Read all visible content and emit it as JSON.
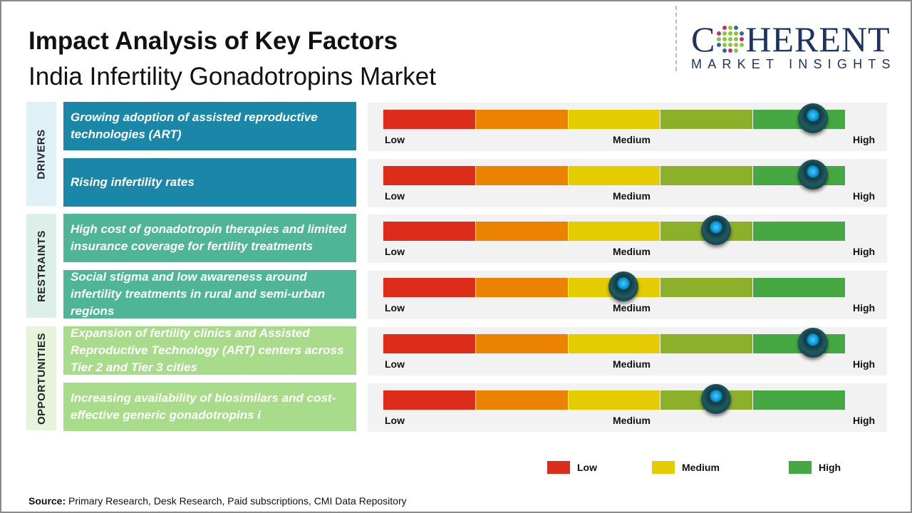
{
  "title": "Impact Analysis of Key Factors",
  "subtitle": "India Infertility Gonadotropins Market",
  "logo": {
    "main": "COHERENT",
    "sub": "MARKET INSIGHTS"
  },
  "scale": {
    "low": "Low",
    "medium": "Medium",
    "high": "High",
    "colors": [
      "#dd2c1a",
      "#ec8300",
      "#e5cc00",
      "#8db02a",
      "#45a842"
    ]
  },
  "categories": [
    {
      "label": "DRIVERS",
      "bg": "#dff0f7",
      "color": "#1a86a8",
      "factors": [
        {
          "text": "Growing adoption of assisted reproductive technologies (ART)",
          "impact": 0.93
        },
        {
          "text": "Rising infertility rates",
          "impact": 0.93
        }
      ]
    },
    {
      "label": "RESTRAINTS",
      "bg": "#dcefe9",
      "color": "#4fb597",
      "factors": [
        {
          "text": "High cost of gonadotropin therapies and limited insurance coverage for fertility treatments",
          "impact": 0.72
        },
        {
          "text": "Social stigma and low awareness around infertility treatments in rural and semi-urban regions",
          "impact": 0.52
        }
      ]
    },
    {
      "label": "OPPORTUNITIES",
      "bg": "#e6f4dc",
      "color": "#a8dc8a",
      "factors": [
        {
          "text": "Expansion of fertility clinics and Assisted Reproductive Technology (ART) centers across Tier 2 and Tier 3 cities",
          "impact": 0.93
        },
        {
          "text": "Increasing availability of biosimilars and cost-effective generic gonadotropins i",
          "impact": 0.72
        }
      ]
    }
  ],
  "legend": [
    {
      "label": "Low",
      "color": "#dd2c1a"
    },
    {
      "label": "Medium",
      "color": "#e5cc00"
    },
    {
      "label": "High",
      "color": "#45a842"
    }
  ],
  "source": {
    "label": "Source:",
    "text": " Primary Research, Desk Research, Paid subscriptions, CMI Data Repository"
  }
}
